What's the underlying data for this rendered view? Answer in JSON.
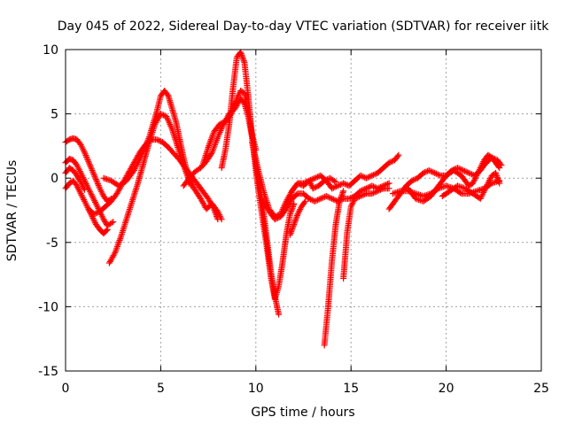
{
  "chart_data": {
    "type": "scatter",
    "title": "Day 045 of 2022, Sidereal Day-to-day VTEC variation (SDTVAR) for receiver iitk",
    "xlabel": "GPS time / hours",
    "ylabel": "SDTVAR / TECUs",
    "xlim": [
      0,
      25
    ],
    "ylim": [
      -15,
      10
    ],
    "xticks": [
      0,
      5,
      10,
      15,
      20,
      25
    ],
    "yticks": [
      -15,
      -10,
      -5,
      0,
      5,
      10
    ],
    "grid": true,
    "marker": "+",
    "color": "#ff0000",
    "series": [
      {
        "x": [
          0,
          0.2,
          0.4,
          0.6,
          0.8,
          1.0,
          1.2,
          1.4,
          1.6,
          1.8,
          2.0,
          2.2,
          2.4
        ],
        "y": [
          2.8,
          3.0,
          3.1,
          3.0,
          2.6,
          2.0,
          1.3,
          0.6,
          -0.1,
          -0.8,
          -1.4,
          -1.8,
          -1.6
        ]
      },
      {
        "x": [
          0,
          0.2,
          0.4,
          0.6,
          0.8,
          1.0,
          1.2,
          1.4,
          1.6,
          1.8,
          2.0,
          2.2,
          2.5
        ],
        "y": [
          1.2,
          1.5,
          1.4,
          1.0,
          0.4,
          -0.2,
          -0.8,
          -1.4,
          -2.0,
          -2.6,
          -3.2,
          -3.7,
          -3.4
        ]
      },
      {
        "x": [
          0,
          0.2,
          0.4,
          0.6,
          0.8,
          1.0,
          1.2,
          1.4,
          1.6,
          1.8,
          2.0,
          2.2
        ],
        "y": [
          -0.8,
          -0.4,
          -0.2,
          -0.6,
          -1.2,
          -1.8,
          -2.4,
          -3.0,
          -3.6,
          -4.0,
          -4.3,
          -4.0
        ]
      },
      {
        "x": [
          0,
          0.2,
          0.4,
          0.6,
          0.8,
          1.0
        ],
        "y": [
          0.4,
          0.8,
          0.6,
          0.2,
          -0.3,
          -0.9
        ]
      },
      {
        "x": [
          1.2,
          1.5,
          1.8,
          2.1,
          2.4,
          2.7,
          3.0,
          3.3,
          3.6,
          3.9,
          4.2,
          4.5,
          4.8,
          5.1,
          5.4,
          5.7,
          6.0,
          6.3,
          6.6,
          6.9,
          7.2,
          7.5,
          7.8,
          8.0
        ],
        "y": [
          -2.4,
          -2.8,
          -2.6,
          -2.2,
          -1.8,
          -1.2,
          -0.4,
          0.4,
          1.2,
          2.0,
          2.6,
          3.0,
          3.0,
          2.8,
          2.4,
          1.9,
          1.4,
          0.8,
          0.2,
          -0.4,
          -1.0,
          -1.6,
          -2.4,
          -3.2
        ]
      },
      {
        "x": [
          2.3,
          2.6,
          2.9,
          3.2,
          3.5,
          3.8,
          4.1,
          4.4,
          4.7,
          5.0,
          5.3,
          5.6,
          5.9,
          6.2,
          6.5,
          6.8,
          7.1,
          7.4,
          7.7,
          8.0,
          8.2
        ],
        "y": [
          -6.6,
          -5.8,
          -4.6,
          -3.2,
          -1.8,
          -0.4,
          1.2,
          2.8,
          4.2,
          5.0,
          4.8,
          3.8,
          2.4,
          1.0,
          -0.2,
          -0.9,
          -1.6,
          -2.4,
          -2.0,
          -2.6,
          -3.2
        ]
      },
      {
        "x": [
          2.0,
          2.4,
          2.8,
          3.2,
          3.6,
          4.0,
          4.4,
          4.8,
          5.0,
          5.2,
          5.4,
          5.6,
          5.8,
          6.0,
          6.2,
          6.4,
          6.6
        ],
        "y": [
          0,
          -0.2,
          -0.6,
          -0.2,
          0.6,
          1.8,
          3.2,
          5.2,
          6.4,
          6.8,
          6.4,
          5.4,
          4.4,
          3.0,
          1.6,
          0.4,
          -0.6
        ]
      },
      {
        "x": [
          6.2,
          6.5,
          6.8,
          7.1,
          7.4,
          7.7,
          8.0,
          8.3,
          8.6,
          8.9,
          9.2,
          9.4,
          9.6,
          9.8,
          10.0,
          10.2,
          10.4,
          10.6,
          10.8,
          11.0,
          11.2
        ],
        "y": [
          -0.6,
          0,
          0.5,
          0.8,
          1.3,
          2.0,
          3.2,
          4.2,
          5.0,
          5.4,
          6.2,
          5.8,
          4.8,
          3.2,
          1.2,
          -0.6,
          -2.6,
          -5.0,
          -7.4,
          -9.2,
          -10.6
        ]
      },
      {
        "x": [
          7.2,
          7.5,
          7.8,
          8.1,
          8.4,
          8.7,
          9.0,
          9.2,
          9.4,
          9.6,
          9.8,
          10.0
        ],
        "y": [
          1.0,
          2.4,
          3.6,
          4.2,
          4.4,
          5.0,
          6.2,
          6.8,
          6.6,
          5.2,
          3.4,
          2.2
        ]
      },
      {
        "x": [
          8.2,
          8.4,
          8.6,
          8.8,
          9.0,
          9.2,
          9.4,
          9.6,
          9.8,
          10.0,
          10.2,
          10.4,
          10.6,
          10.8,
          11.0,
          11.2,
          11.4,
          11.6,
          11.8,
          12.0
        ],
        "y": [
          0.8,
          2.2,
          4.2,
          7.0,
          9.4,
          9.8,
          9.0,
          6.4,
          3.2,
          0.6,
          -1.6,
          -3.6,
          -5.6,
          -7.8,
          -9.4,
          -8.4,
          -6.6,
          -4.4,
          -2.8,
          -2.0
        ]
      },
      {
        "x": [
          9.8,
          10.1,
          10.4,
          10.7,
          11.0,
          11.3,
          11.6,
          11.9,
          12.2,
          12.5,
          12.8,
          13.1,
          13.4,
          13.7,
          14.0,
          14.3,
          14.6,
          14.9,
          15.2,
          15.5,
          15.8,
          16.1,
          16.4,
          16.7,
          17.0,
          17.3,
          17.5
        ],
        "y": [
          2.8,
          0.8,
          -1.0,
          -2.4,
          -3.0,
          -2.8,
          -1.8,
          -1.0,
          -0.4,
          -0.6,
          -0.2,
          0,
          0.2,
          -0.2,
          -0.8,
          -0.6,
          -0.4,
          -0.6,
          -0.2,
          0.2,
          0,
          0.2,
          0.4,
          0.8,
          1.2,
          1.4,
          1.8
        ]
      },
      {
        "x": [
          10.4,
          10.7,
          11.0,
          11.3,
          11.6,
          11.9,
          12.2,
          12.5,
          12.8,
          13.1,
          13.4,
          13.7,
          14.0,
          14.3,
          14.6,
          14.9,
          15.2,
          15.5,
          15.8,
          16.1,
          16.4,
          16.7,
          17.0
        ],
        "y": [
          -1.8,
          -2.6,
          -3.2,
          -3.0,
          -2.4,
          -1.6,
          -1.2,
          -1.2,
          -1.6,
          -1.8,
          -1.6,
          -1.4,
          -1.6,
          -1.8,
          -1.6,
          -1.6,
          -1.4,
          -1.0,
          -0.8,
          -0.6,
          -0.8,
          -0.6,
          -0.4
        ]
      },
      {
        "x": [
          11.6,
          11.9,
          12.2,
          12.5,
          12.8,
          13.0,
          13.3,
          13.6,
          13.9,
          14.2
        ],
        "y": [
          -2.2,
          -1.0,
          -0.4,
          -0.4,
          -0.2,
          -0.8,
          -0.6,
          -0.2,
          0,
          -0.3
        ]
      },
      {
        "x": [
          11.8,
          12.0,
          12.2,
          12.4,
          12.6
        ],
        "y": [
          -4.4,
          -3.6,
          -2.8,
          -2.2,
          -1.8
        ]
      },
      {
        "x": [
          13.6,
          13.8,
          14.0,
          14.2,
          14.4,
          14.6
        ],
        "y": [
          -13.0,
          -10.0,
          -6.4,
          -3.6,
          -1.8,
          -1.0
        ]
      },
      {
        "x": [
          14.6,
          14.8,
          15.0,
          15.2,
          15.5,
          15.8,
          16.1,
          16.4,
          16.7,
          17.0
        ],
        "y": [
          -7.8,
          -4.2,
          -2.2,
          -1.6,
          -1.4,
          -1.2,
          -1.2,
          -1.0,
          -0.8,
          -0.8
        ]
      },
      {
        "x": [
          17.0,
          17.3,
          17.6,
          17.9,
          18.2,
          18.5,
          18.8,
          19.1,
          19.4,
          19.7,
          20.0,
          20.3,
          20.6,
          20.9,
          21.2,
          21.5,
          21.8,
          22.1,
          22.4,
          22.7,
          22.9
        ],
        "y": [
          -2.4,
          -1.8,
          -1.2,
          -0.6,
          -0.2,
          0,
          0.4,
          0.6,
          0.4,
          0.2,
          0.2,
          0.6,
          0.8,
          0.6,
          0.4,
          0.2,
          0.6,
          1.2,
          1.6,
          1.4,
          1.0
        ]
      },
      {
        "x": [
          17.2,
          17.6,
          18.0,
          18.4,
          18.8,
          19.2,
          19.6,
          20.0,
          20.4,
          20.8,
          21.2,
          21.6,
          22.0,
          22.4,
          22.8
        ],
        "y": [
          -1.2,
          -1.0,
          -1.0,
          -1.2,
          -1.4,
          -1.2,
          -0.8,
          -0.6,
          -0.8,
          -1.2,
          -1.2,
          -1.0,
          -0.8,
          -0.4,
          -0.2
        ]
      },
      {
        "x": [
          18.0,
          18.4,
          18.8,
          19.2,
          19.6,
          20.0,
          20.4,
          20.8,
          21.0,
          21.2,
          21.4,
          21.6,
          21.8,
          22.0,
          22.2,
          22.4,
          22.6,
          22.8
        ],
        "y": [
          -0.8,
          -1.6,
          -1.8,
          -1.4,
          -0.6,
          0.2,
          0.6,
          0.2,
          -0.2,
          -0.6,
          -0.4,
          0.2,
          0.8,
          1.4,
          1.8,
          1.6,
          1.2,
          0.8
        ]
      },
      {
        "x": [
          19.8,
          20.2,
          20.6,
          21.0,
          21.4,
          21.8,
          22.0,
          22.2,
          22.4,
          22.6,
          22.8
        ],
        "y": [
          -1.4,
          -1.0,
          -0.6,
          -0.8,
          -1.2,
          -1.6,
          -1.0,
          -0.4,
          0.2,
          0.4,
          -0.4
        ]
      }
    ]
  }
}
